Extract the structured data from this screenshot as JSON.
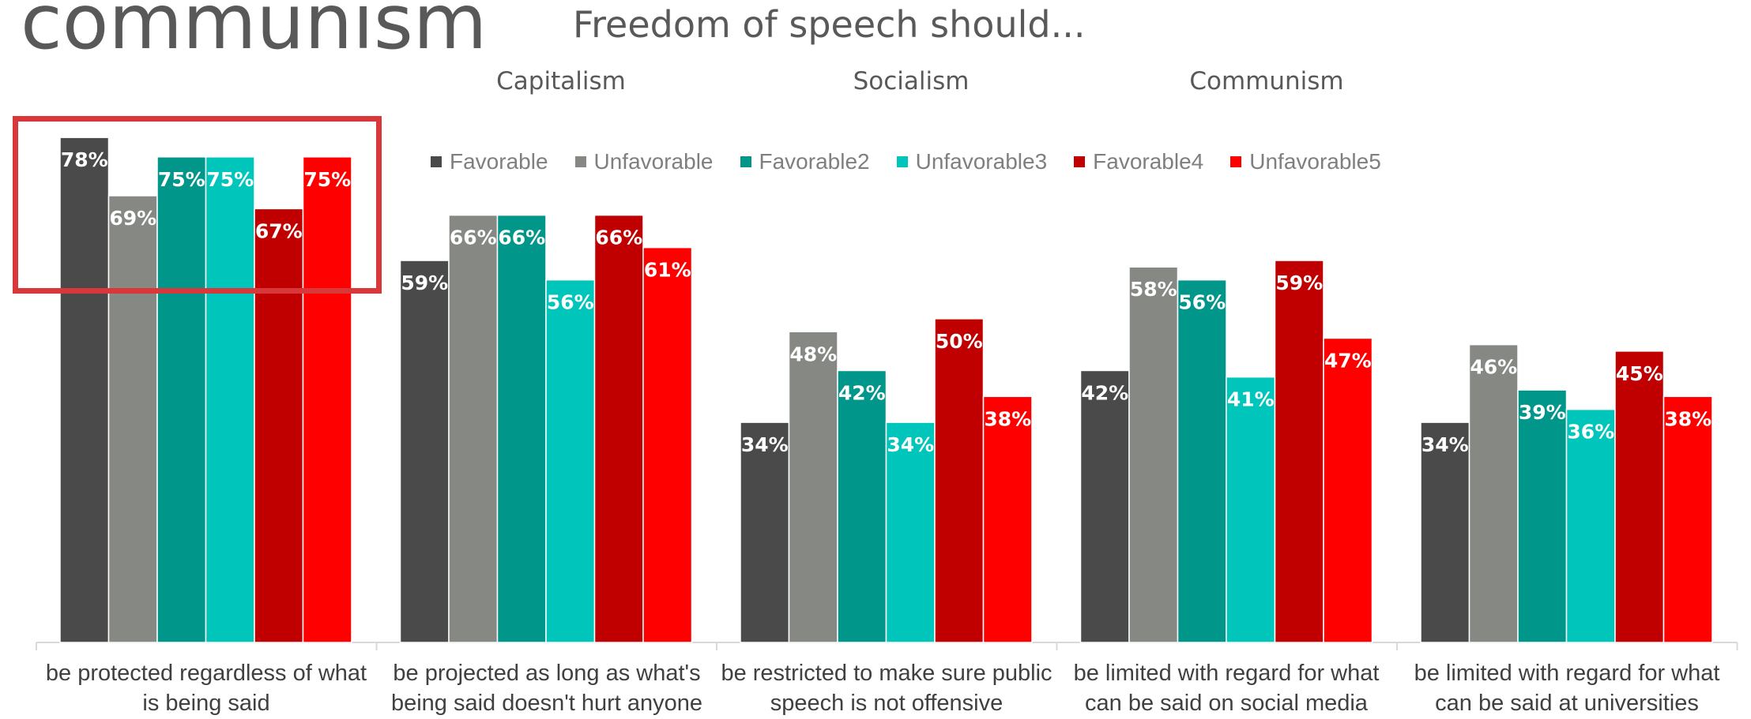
{
  "slide_title": "communism",
  "chart_data": {
    "type": "bar",
    "title": "Freedom of speech should...",
    "group_headers": [
      "Capitalism",
      "Socialism",
      "Communism"
    ],
    "categories": [
      "be protected regardless of what is being said",
      "be projected as long as what's being said doesn't hurt anyone",
      "be restricted to make sure public speech is not offensive",
      "be limited with regard for what can be said on social media",
      "be limited with regard for what can be said at universities"
    ],
    "series": [
      {
        "name": "Favorable",
        "color": "#4a4a4a",
        "values": [
          78,
          59,
          34,
          42,
          34
        ],
        "labels": [
          "78%",
          "59%",
          "34%",
          "42%",
          "34%"
        ]
      },
      {
        "name": "Unfavorable",
        "color": "#868884",
        "values": [
          69,
          66,
          48,
          58,
          46
        ],
        "labels": [
          "69%",
          "66%",
          "48%",
          "58%",
          "46%"
        ]
      },
      {
        "name": "Favorable2",
        "color": "#00968a",
        "values": [
          75,
          66,
          42,
          56,
          39
        ],
        "labels": [
          "75%",
          "66%",
          "42%",
          "56%",
          "39%"
        ]
      },
      {
        "name": "Unfavorable3",
        "color": "#00c5bb",
        "values": [
          75,
          56,
          34,
          41,
          36
        ],
        "labels": [
          "75%",
          "56%",
          "34%",
          "41%",
          "36%"
        ]
      },
      {
        "name": "Favorable4",
        "color": "#c00000",
        "values": [
          67,
          66,
          50,
          59,
          45
        ],
        "labels": [
          "67%",
          "66%",
          "50%",
          "59%",
          "45%"
        ]
      },
      {
        "name": "Unfavorable5",
        "color": "#ff0000",
        "values": [
          75,
          61,
          38,
          47,
          38
        ],
        "labels": [
          "75%",
          "61%",
          "38%",
          "47%",
          "38%"
        ]
      }
    ],
    "ylim": [
      0,
      100
    ],
    "legend_position": "top",
    "grid": false,
    "highlight_color": "#d9383a"
  }
}
